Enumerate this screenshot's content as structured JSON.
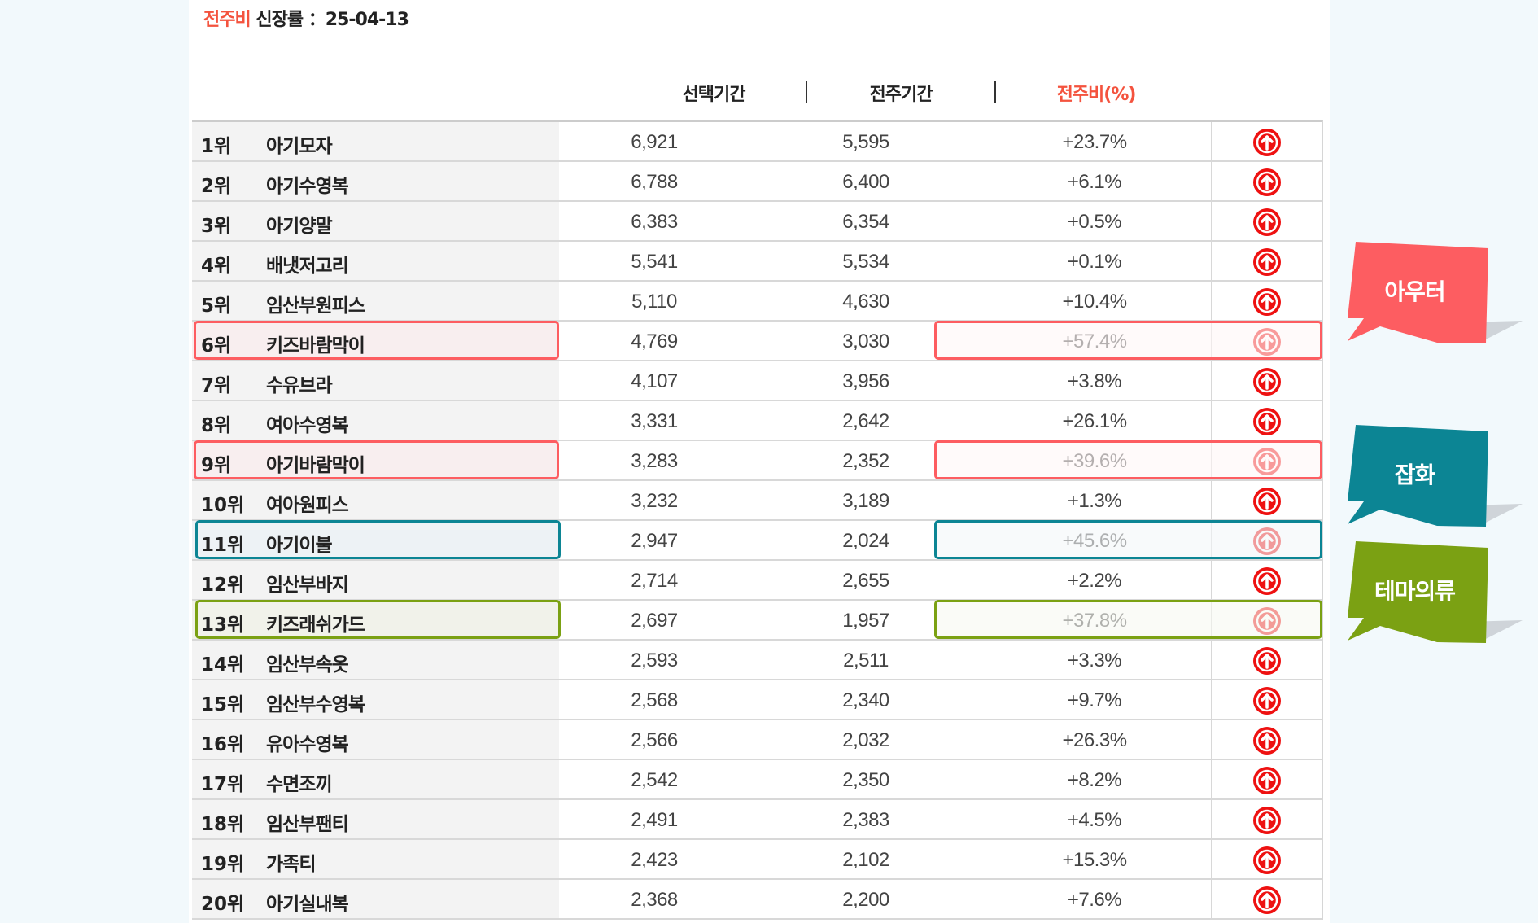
{
  "title": {
    "accent": "전주비",
    "text": " 신장률 ：25-04-13"
  },
  "headers": {
    "selected": "선택기간",
    "previous": "전주기간",
    "ratio": "전주비(%)",
    "separator": "|"
  },
  "colors": {
    "accent": "#f4533e",
    "up_icon": "#ee1111",
    "outer": "#fd5d61",
    "misc": "#0c8594",
    "theme": "#7ba113"
  },
  "rows": [
    {
      "rank": "1위",
      "name": "아기모자",
      "selected": "6,921",
      "previous": "5,595",
      "ratio": "+23.7%",
      "icon": "arrow-up-circle"
    },
    {
      "rank": "2위",
      "name": "아기수영복",
      "selected": "6,788",
      "previous": "6,400",
      "ratio": "+6.1%",
      "icon": "arrow-up-circle"
    },
    {
      "rank": "3위",
      "name": "아기양말",
      "selected": "6,383",
      "previous": "6,354",
      "ratio": "+0.5%",
      "icon": "arrow-up-circle"
    },
    {
      "rank": "4위",
      "name": "배냇저고리",
      "selected": "5,541",
      "previous": "5,534",
      "ratio": "+0.1%",
      "icon": "arrow-up-circle"
    },
    {
      "rank": "5위",
      "name": "임산부원피스",
      "selected": "5,110",
      "previous": "4,630",
      "ratio": "+10.4%",
      "icon": "arrow-up-circle"
    },
    {
      "rank": "6위",
      "name": "키즈바람막이",
      "selected": "4,769",
      "previous": "3,030",
      "ratio": "+57.4%",
      "icon": "arrow-up-circle",
      "highlight": "outer"
    },
    {
      "rank": "7위",
      "name": "수유브라",
      "selected": "4,107",
      "previous": "3,956",
      "ratio": "+3.8%",
      "icon": "arrow-up-circle"
    },
    {
      "rank": "8위",
      "name": "여아수영복",
      "selected": "3,331",
      "previous": "2,642",
      "ratio": "+26.1%",
      "icon": "arrow-up-circle"
    },
    {
      "rank": "9위",
      "name": "아기바람막이",
      "selected": "3,283",
      "previous": "2,352",
      "ratio": "+39.6%",
      "icon": "arrow-up-circle",
      "highlight": "outer"
    },
    {
      "rank": "10위",
      "name": "여아원피스",
      "selected": "3,232",
      "previous": "3,189",
      "ratio": "+1.3%",
      "icon": "arrow-up-circle"
    },
    {
      "rank": "11위",
      "name": "아기이불",
      "selected": "2,947",
      "previous": "2,024",
      "ratio": "+45.6%",
      "icon": "arrow-up-circle",
      "highlight": "misc"
    },
    {
      "rank": "12위",
      "name": "임산부바지",
      "selected": "2,714",
      "previous": "2,655",
      "ratio": "+2.2%",
      "icon": "arrow-up-circle"
    },
    {
      "rank": "13위",
      "name": "키즈래쉬가드",
      "selected": "2,697",
      "previous": "1,957",
      "ratio": "+37.8%",
      "icon": "arrow-up-circle",
      "highlight": "theme"
    },
    {
      "rank": "14위",
      "name": "임산부속옷",
      "selected": "2,593",
      "previous": "2,511",
      "ratio": "+3.3%",
      "icon": "arrow-up-circle"
    },
    {
      "rank": "15위",
      "name": "임산부수영복",
      "selected": "2,568",
      "previous": "2,340",
      "ratio": "+9.7%",
      "icon": "arrow-up-circle"
    },
    {
      "rank": "16위",
      "name": "유아수영복",
      "selected": "2,566",
      "previous": "2,032",
      "ratio": "+26.3%",
      "icon": "arrow-up-circle"
    },
    {
      "rank": "17위",
      "name": "수면조끼",
      "selected": "2,542",
      "previous": "2,350",
      "ratio": "+8.2%",
      "icon": "arrow-up-circle"
    },
    {
      "rank": "18위",
      "name": "임산부팬티",
      "selected": "2,491",
      "previous": "2,383",
      "ratio": "+4.5%",
      "icon": "arrow-up-circle"
    },
    {
      "rank": "19위",
      "name": "가족티",
      "selected": "2,423",
      "previous": "2,102",
      "ratio": "+15.3%",
      "icon": "arrow-up-circle"
    },
    {
      "rank": "20위",
      "name": "아기실내복",
      "selected": "2,368",
      "previous": "2,200",
      "ratio": "+7.6%",
      "icon": "arrow-up-circle"
    }
  ],
  "callouts": [
    {
      "key": "outer",
      "label": "아우터",
      "color": "#fd5d61"
    },
    {
      "key": "misc",
      "label": "잡화",
      "color": "#0c8594"
    },
    {
      "key": "theme",
      "label": "테마의류",
      "color": "#7ba113"
    }
  ]
}
